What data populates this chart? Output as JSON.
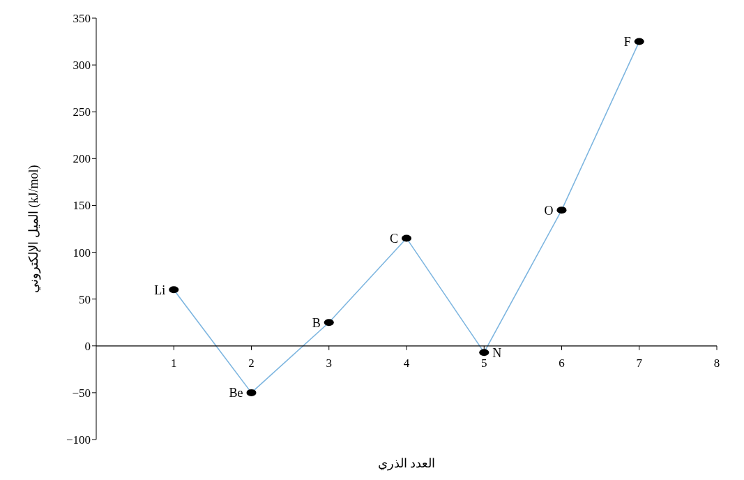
{
  "chart_data": {
    "type": "line",
    "xlabel": "العدد الذري",
    "ylabel": "الميل الإلكتروني (kJ/mol)",
    "x": [
      1,
      2,
      3,
      4,
      5,
      6,
      7
    ],
    "series": [
      {
        "color": "#7eb6e0",
        "values": [
          60,
          -50,
          25,
          115,
          -7,
          145,
          325
        ]
      }
    ],
    "marker": "circle",
    "grid": false,
    "legend": false,
    "xlim": [
      0,
      8
    ],
    "xticks": [
      1,
      2,
      3,
      4,
      5,
      6,
      7,
      8
    ],
    "ylim": [
      -100,
      350
    ],
    "yticks": [
      -100,
      -50,
      0,
      50,
      100,
      150,
      200,
      250,
      300,
      350
    ],
    "annotations": [
      {
        "text": "Li",
        "x": 1,
        "y": 60
      },
      {
        "text": "Be",
        "x": 2,
        "y": -50
      },
      {
        "text": "B",
        "x": 3,
        "y": 25
      },
      {
        "text": "C",
        "x": 4,
        "y": 115
      },
      {
        "text": "N",
        "x": 5,
        "y": -7
      },
      {
        "text": "O",
        "x": 6,
        "y": 145
      },
      {
        "text": "F",
        "x": 7,
        "y": 325
      }
    ]
  }
}
